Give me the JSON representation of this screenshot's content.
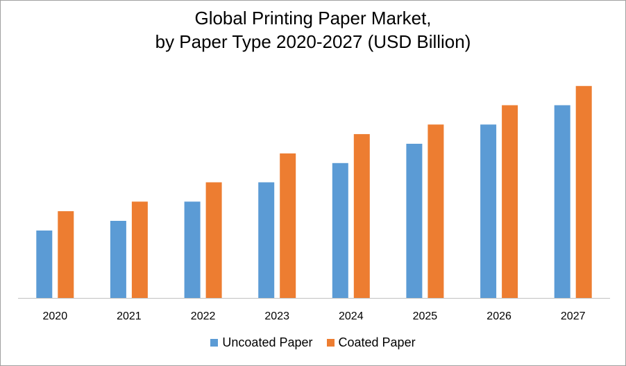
{
  "chart_data": {
    "type": "bar",
    "title": "Global Printing Paper Market,",
    "subtitle": "by Paper Type 2020-2027 (USD Billion)",
    "categories": [
      "2020",
      "2021",
      "2022",
      "2023",
      "2024",
      "2025",
      "2026",
      "2027"
    ],
    "series": [
      {
        "name": "Uncoated Paper",
        "color": "#5b9bd5",
        "values": [
          3.5,
          4.0,
          5.0,
          6.0,
          7.0,
          8.0,
          9.0,
          10.0
        ]
      },
      {
        "name": "Coated Paper",
        "color": "#ed7d31",
        "values": [
          4.5,
          5.0,
          6.0,
          7.5,
          8.5,
          9.0,
          10.0,
          11.0
        ]
      }
    ],
    "xlabel": "",
    "ylabel": "",
    "ylim": [
      0,
      12
    ],
    "grid": false,
    "legend": "bottom"
  }
}
